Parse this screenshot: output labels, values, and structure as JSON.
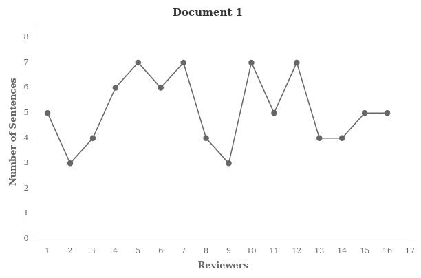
{
  "chart_data": {
    "type": "line",
    "title": "Document 1",
    "xlabel": "Reviewers",
    "ylabel": "Number of Sentences",
    "x": [
      1,
      2,
      3,
      4,
      5,
      6,
      7,
      8,
      9,
      10,
      11,
      12,
      13,
      14,
      15,
      16
    ],
    "values": [
      5,
      3,
      4,
      6,
      7,
      6,
      7,
      4,
      3,
      7,
      5,
      7,
      4,
      4,
      5,
      5
    ],
    "color": "#666666",
    "marker": "circle",
    "xlim": [
      0.5,
      17
    ],
    "ylim": [
      0,
      8.5
    ],
    "xticks": [
      1,
      2,
      3,
      4,
      5,
      6,
      7,
      8,
      9,
      10,
      11,
      12,
      13,
      14,
      15,
      16,
      17
    ],
    "yticks": [
      0,
      1,
      2,
      3,
      4,
      5,
      6,
      7,
      8
    ],
    "grid": false
  }
}
